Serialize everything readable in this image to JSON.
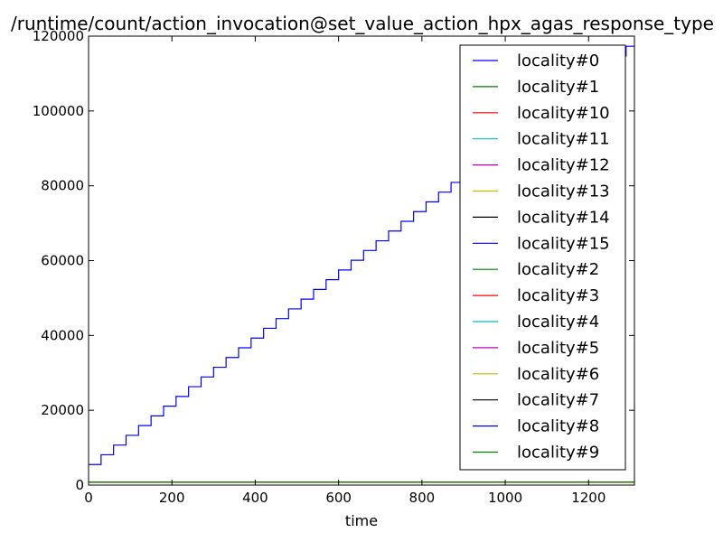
{
  "chart_data": {
    "type": "line",
    "title": "/runtime/count/action_invocation@set_value_action_hpx_agas_response_type",
    "xlabel": "time",
    "ylabel": "",
    "xlim": [
      0,
      1310
    ],
    "ylim": [
      0,
      120000
    ],
    "xticks": [
      0,
      200,
      400,
      600,
      800,
      1000,
      1200
    ],
    "yticks": [
      0,
      20000,
      40000,
      60000,
      80000,
      100000,
      120000
    ],
    "xtick_labels": [
      "0",
      "200",
      "400",
      "600",
      "800",
      "1000",
      "1200"
    ],
    "ytick_labels": [
      "0",
      "20000",
      "40000",
      "60000",
      "80000",
      "100000",
      "120000"
    ],
    "legend_position": "upper-right",
    "step_data": {
      "series": "locality#0",
      "x_step": 30,
      "y_start": 5500,
      "y_step": 2600,
      "x_max": 1310
    },
    "series": [
      {
        "name": "locality#0",
        "color": "#0000ff"
      },
      {
        "name": "locality#1",
        "color": "#008000"
      },
      {
        "name": "locality#10",
        "color": "#ff0000"
      },
      {
        "name": "locality#11",
        "color": "#00bfbf"
      },
      {
        "name": "locality#12",
        "color": "#bf00bf"
      },
      {
        "name": "locality#13",
        "color": "#bfbf00"
      },
      {
        "name": "locality#14",
        "color": "#000000"
      },
      {
        "name": "locality#15",
        "color": "#0000ff"
      },
      {
        "name": "locality#2",
        "color": "#008000"
      },
      {
        "name": "locality#3",
        "color": "#ff0000"
      },
      {
        "name": "locality#4",
        "color": "#00bfbf"
      },
      {
        "name": "locality#5",
        "color": "#bf00bf"
      },
      {
        "name": "locality#6",
        "color": "#bfbf00"
      },
      {
        "name": "locality#7",
        "color": "#000000"
      },
      {
        "name": "locality#8",
        "color": "#0000ff"
      },
      {
        "name": "locality#9",
        "color": "#008000"
      }
    ],
    "flat_level": 800
  }
}
